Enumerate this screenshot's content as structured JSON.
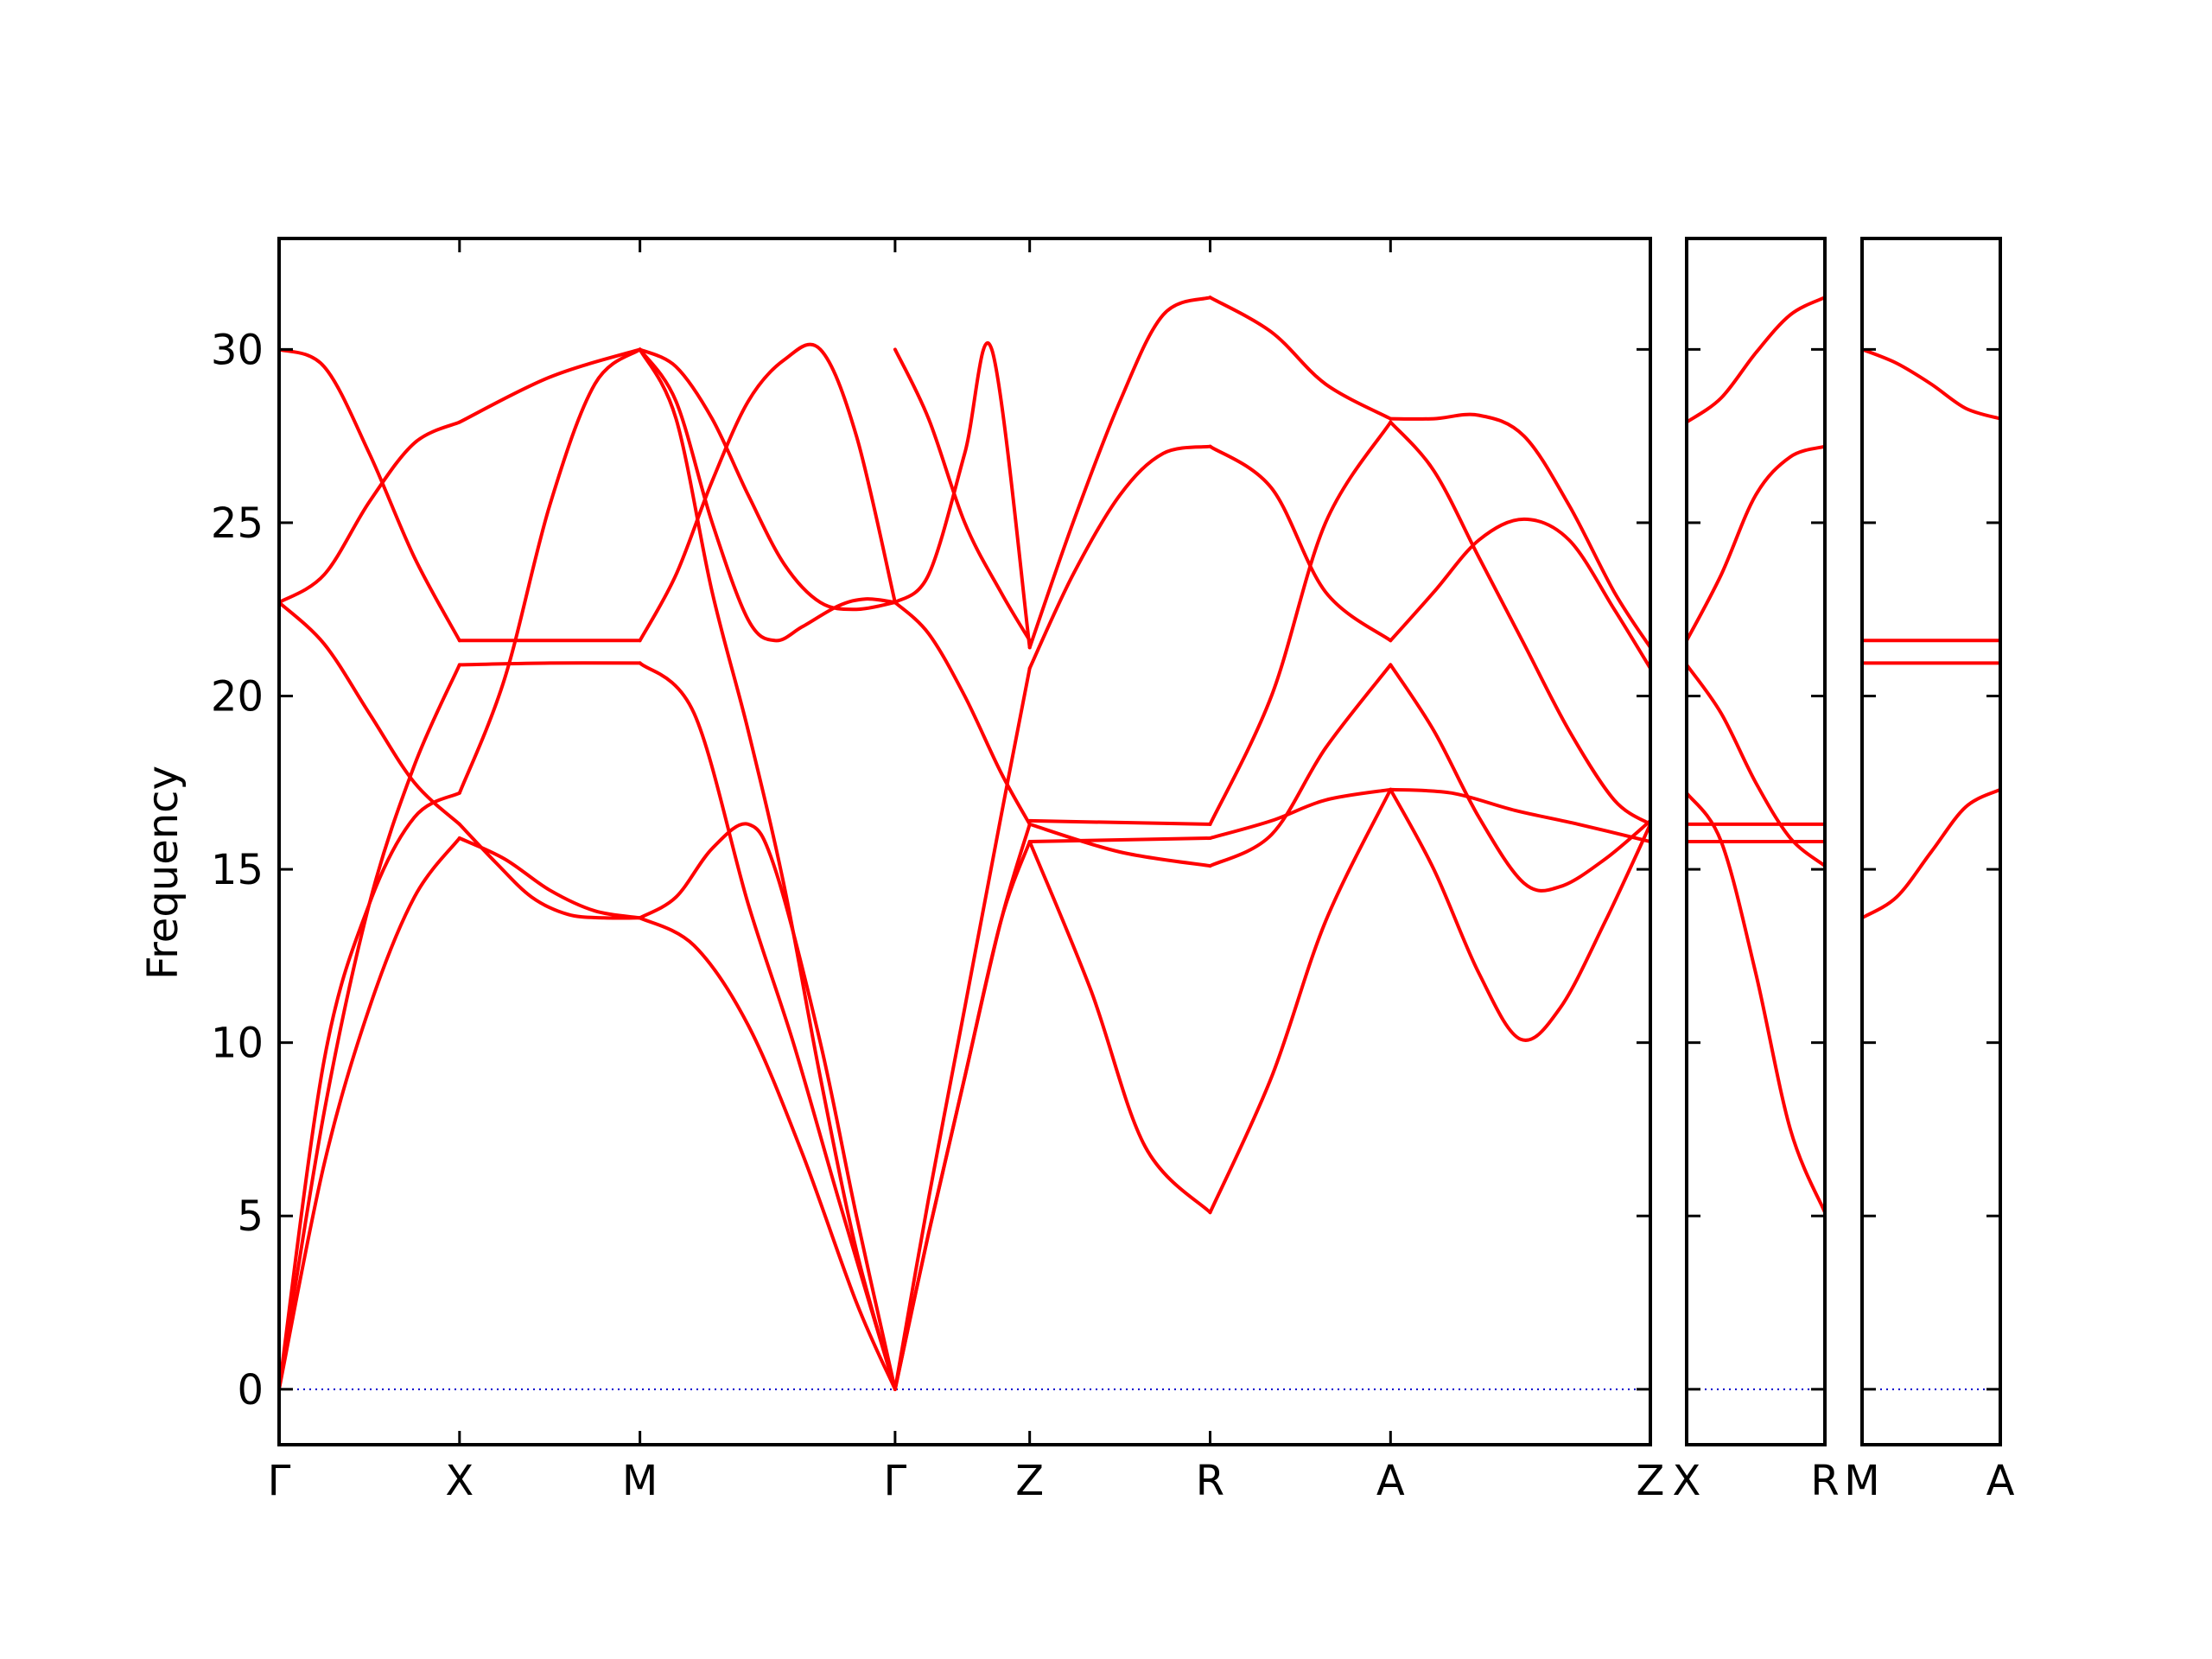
{
  "chart_data": {
    "type": "line",
    "ylabel": "Frequency",
    "ylim": [
      -1.6,
      33.2
    ],
    "yticks": [
      0,
      5,
      10,
      15,
      20,
      25,
      30
    ],
    "grid": false,
    "colors": {
      "band": "#ff0000",
      "zero_line": "#0000cc",
      "axes": "#000000"
    },
    "panels": [
      {
        "xrange": [
          0,
          7.6
        ],
        "labels": [
          {
            "x": 0,
            "text": "Γ"
          },
          {
            "x": 1,
            "text": "X"
          },
          {
            "x": 2,
            "text": "M"
          },
          {
            "x": 3.414,
            "text": "Γ"
          },
          {
            "x": 4.16,
            "text": "Z"
          },
          {
            "x": 5.16,
            "text": "R"
          },
          {
            "x": 6.16,
            "text": "A"
          },
          {
            "x": 7.6,
            "text": "Z"
          }
        ],
        "bands": [
          {
            "x": [
              0,
              0.25,
              0.5,
              0.75,
              1.0
            ],
            "y": [
              0,
              9.5,
              14.0,
              16.5,
              17.2
            ]
          },
          {
            "x": [
              1.0,
              1.25,
              1.5,
              1.75,
              2.0
            ],
            "y": [
              17.2,
              20.5,
              25.5,
              29.0,
              30.0
            ]
          },
          {
            "x": [
              2.0,
              2.2,
              2.4,
              2.6,
              2.8,
              3.0,
              3.2,
              3.414
            ],
            "y": [
              30.0,
              28.0,
              23.0,
              19.0,
              14.5,
              9.0,
              4.0,
              0
            ]
          },
          {
            "x": [
              0,
              0.25,
              0.5,
              0.75,
              1.0
            ],
            "y": [
              0,
              6.5,
              11.0,
              14.2,
              15.9
            ]
          },
          {
            "x": [
              1.0,
              1.25,
              1.5,
              1.75,
              2.0
            ],
            "y": [
              15.9,
              15.3,
              14.4,
              13.8,
              13.6
            ]
          },
          {
            "x": [
              2.0,
              2.3,
              2.6,
              2.9,
              3.2,
              3.414
            ],
            "y": [
              13.6,
              12.8,
              10.5,
              6.8,
              2.5,
              0
            ]
          },
          {
            "x": [
              0,
              0.25,
              0.5,
              0.75,
              1.0
            ],
            "y": [
              0,
              8.0,
              14.0,
              18.0,
              20.9
            ]
          },
          {
            "x": [
              1.0,
              1.5,
              2.0
            ],
            "y": [
              20.9,
              20.95,
              20.95
            ]
          },
          {
            "x": [
              2.0,
              2.3,
              2.6,
              2.85,
              3.1,
              3.414
            ],
            "y": [
              20.95,
              19.5,
              14.0,
              10.0,
              5.5,
              0
            ]
          },
          {
            "x": [
              0,
              0.25,
              0.5,
              0.75,
              1.0
            ],
            "y": [
              22.7,
              21.5,
              19.5,
              17.5,
              16.3
            ]
          },
          {
            "x": [
              1.0,
              1.2,
              1.4,
              1.6,
              1.8,
              2.0
            ],
            "y": [
              16.3,
              15.2,
              14.2,
              13.7,
              13.6,
              13.6
            ]
          },
          {
            "x": [
              2.0,
              2.2,
              2.4,
              2.6,
              2.75,
              3.0,
              3.2,
              3.414
            ],
            "y": [
              13.6,
              14.2,
              15.6,
              16.3,
              15.0,
              10.0,
              5.0,
              0
            ]
          },
          {
            "x": [
              0,
              0.25,
              0.5,
              0.75,
              1.0
            ],
            "y": [
              22.7,
              23.5,
              25.6,
              27.3,
              27.9
            ]
          },
          {
            "x": [
              1.0,
              1.5,
              2.0
            ],
            "y": [
              27.9,
              29.2,
              30.0
            ]
          },
          {
            "x": [
              2.0,
              2.2,
              2.4,
              2.6,
              2.8,
              3.0,
              3.2,
              3.414
            ],
            "y": [
              30.0,
              29.5,
              28.0,
              25.8,
              23.8,
              22.7,
              22.5,
              22.7
            ]
          },
          {
            "x": [
              0,
              0.25,
              0.5,
              0.75,
              1.0
            ],
            "y": [
              30.0,
              29.5,
              27.0,
              24.0,
              21.6
            ]
          },
          {
            "x": [
              1.0,
              1.5,
              2.0
            ],
            "y": [
              21.6,
              21.6,
              21.6
            ]
          },
          {
            "x": [
              2.0,
              2.2,
              2.4,
              2.6,
              2.8,
              3.0,
              3.2,
              3.414
            ],
            "y": [
              21.6,
              23.5,
              26.2,
              28.5,
              29.7,
              30.0,
              27.5,
              22.7
            ]
          },
          {
            "x": [
              2.0,
              2.2,
              2.4,
              2.6,
              2.75,
              2.9,
              3.1,
              3.25,
              3.414
            ],
            "y": [
              30.0,
              28.5,
              25.0,
              22.2,
              21.6,
              22.0,
              22.6,
              22.8,
              22.7
            ]
          },
          {
            "x": [
              3.414,
              3.6,
              3.8,
              4.0,
              4.16
            ],
            "y": [
              0,
              4.5,
              9.0,
              13.5,
              16.3
            ]
          },
          {
            "x": [
              3.414,
              3.6,
              3.8,
              4.0,
              4.16
            ],
            "y": [
              0,
              4.5,
              9.0,
              13.5,
              15.8
            ]
          },
          {
            "x": [
              3.414,
              3.6,
              3.8,
              4.0,
              4.16
            ],
            "y": [
              0,
              5.5,
              11.0,
              16.5,
              20.8
            ]
          },
          {
            "x": [
              3.414,
              3.6,
              3.8,
              4.0,
              4.16
            ],
            "y": [
              22.7,
              21.8,
              20.0,
              17.8,
              16.3
            ]
          },
          {
            "x": [
              3.414,
              3.6,
              3.8,
              3.95,
              4.16
            ],
            "y": [
              22.7,
              23.5,
              27.0,
              30.0,
              21.4
            ]
          },
          {
            "x": [
              3.414,
              3.6,
              3.8,
              4.0,
              4.16
            ],
            "y": [
              30.0,
              28.0,
              25.0,
              23.0,
              21.6
            ]
          },
          {
            "x": [
              4.16,
              4.5,
              4.8,
              5.16
            ],
            "y": [
              15.8,
              11.5,
              7.0,
              5.1
            ]
          },
          {
            "x": [
              5.16,
              5.5,
              5.8,
              6.16
            ],
            "y": [
              5.1,
              9.0,
              13.5,
              17.3
            ]
          },
          {
            "x": [
              4.16,
              4.66,
              5.16
            ],
            "y": [
              15.8,
              15.85,
              15.9
            ]
          },
          {
            "x": [
              5.16,
              5.5,
              5.8,
              6.16
            ],
            "y": [
              15.9,
              16.4,
              17.0,
              17.3
            ]
          },
          {
            "x": [
              4.16,
              4.66,
              5.16
            ],
            "y": [
              16.4,
              16.35,
              16.3
            ]
          },
          {
            "x": [
              5.16,
              5.5,
              5.8,
              6.16
            ],
            "y": [
              16.3,
              20.0,
              25.0,
              27.9
            ]
          },
          {
            "x": [
              4.16,
              4.4,
              4.66,
              4.9,
              5.16
            ],
            "y": [
              20.8,
              23.5,
              25.8,
              27.0,
              27.2
            ]
          },
          {
            "x": [
              5.16,
              5.5,
              5.8,
              6.16
            ],
            "y": [
              27.2,
              26.0,
              23.0,
              21.6
            ]
          },
          {
            "x": [
              4.16,
              4.4,
              4.66,
              4.9,
              5.16
            ],
            "y": [
              21.4,
              25.0,
              28.5,
              31.0,
              31.5
            ]
          },
          {
            "x": [
              5.16,
              5.5,
              5.8,
              6.16
            ],
            "y": [
              31.5,
              30.5,
              29.0,
              28.0
            ]
          },
          {
            "x": [
              4.16,
              4.66,
              5.16
            ],
            "y": [
              16.3,
              15.5,
              15.1
            ]
          },
          {
            "x": [
              5.16,
              5.5,
              5.8,
              6.16
            ],
            "y": [
              15.1,
              16.0,
              18.5,
              20.9
            ]
          },
          {
            "x": [
              6.16,
              6.4,
              6.65,
              6.88,
              7.1,
              7.35,
              7.6
            ],
            "y": [
              17.3,
              15.0,
              12.0,
              10.1,
              11.0,
              13.5,
              16.3
            ]
          },
          {
            "x": [
              6.16,
              6.5,
              6.85,
              7.2,
              7.6
            ],
            "y": [
              17.3,
              17.2,
              16.7,
              16.3,
              15.8
            ]
          },
          {
            "x": [
              6.16,
              6.4,
              6.65,
              6.9,
              7.1,
              7.35,
              7.6
            ],
            "y": [
              20.9,
              19.0,
              16.5,
              14.6,
              14.5,
              15.3,
              16.4
            ]
          },
          {
            "x": [
              6.16,
              6.4,
              6.65,
              6.9,
              7.15,
              7.4,
              7.6
            ],
            "y": [
              21.6,
              23.0,
              24.5,
              25.1,
              24.5,
              22.5,
              20.8
            ]
          },
          {
            "x": [
              6.16,
              6.4,
              6.65,
              6.9,
              7.15,
              7.4,
              7.6
            ],
            "y": [
              27.9,
              26.5,
              24.0,
              21.5,
              19.0,
              17.0,
              16.3
            ]
          },
          {
            "x": [
              6.16,
              6.4,
              6.65,
              6.9,
              7.15,
              7.4,
              7.6
            ],
            "y": [
              28.0,
              28.0,
              28.1,
              27.5,
              25.5,
              23.0,
              21.4
            ]
          }
        ]
      },
      {
        "xrange": [
          0,
          1
        ],
        "labels": [
          {
            "x": 0,
            "text": "X"
          },
          {
            "x": 1,
            "text": "R"
          }
        ],
        "bands": [
          {
            "x": [
              0,
              0.25,
              0.5,
              0.75,
              1.0
            ],
            "y": [
              27.9,
              28.6,
              29.9,
              31.0,
              31.5
            ]
          },
          {
            "x": [
              0,
              0.25,
              0.5,
              0.75,
              1.0
            ],
            "y": [
              21.6,
              23.5,
              25.8,
              26.9,
              27.2
            ]
          },
          {
            "x": [
              0,
              0.25,
              0.5,
              0.75,
              1.0
            ],
            "y": [
              20.9,
              19.5,
              17.5,
              15.9,
              15.1
            ]
          },
          {
            "x": [
              0,
              0.25,
              0.5,
              0.75,
              1.0
            ],
            "y": [
              17.2,
              15.8,
              12.0,
              7.5,
              5.1
            ]
          },
          {
            "x": [
              0,
              1.0
            ],
            "y": [
              16.3,
              16.3
            ]
          },
          {
            "x": [
              0,
              1.0
            ],
            "y": [
              15.8,
              15.8
            ]
          }
        ]
      },
      {
        "xrange": [
          0,
          1
        ],
        "labels": [
          {
            "x": 0,
            "text": "M"
          },
          {
            "x": 1,
            "text": "A"
          }
        ],
        "bands": [
          {
            "x": [
              0,
              0.25,
              0.5,
              0.75,
              1.0
            ],
            "y": [
              30.0,
              29.6,
              29.0,
              28.3,
              28.0
            ]
          },
          {
            "x": [
              0,
              1.0
            ],
            "y": [
              21.6,
              21.6
            ]
          },
          {
            "x": [
              0,
              1.0
            ],
            "y": [
              20.95,
              20.95
            ]
          },
          {
            "x": [
              0,
              0.25,
              0.5,
              0.75,
              1.0
            ],
            "y": [
              13.6,
              14.2,
              15.5,
              16.8,
              17.3
            ]
          }
        ]
      }
    ]
  }
}
